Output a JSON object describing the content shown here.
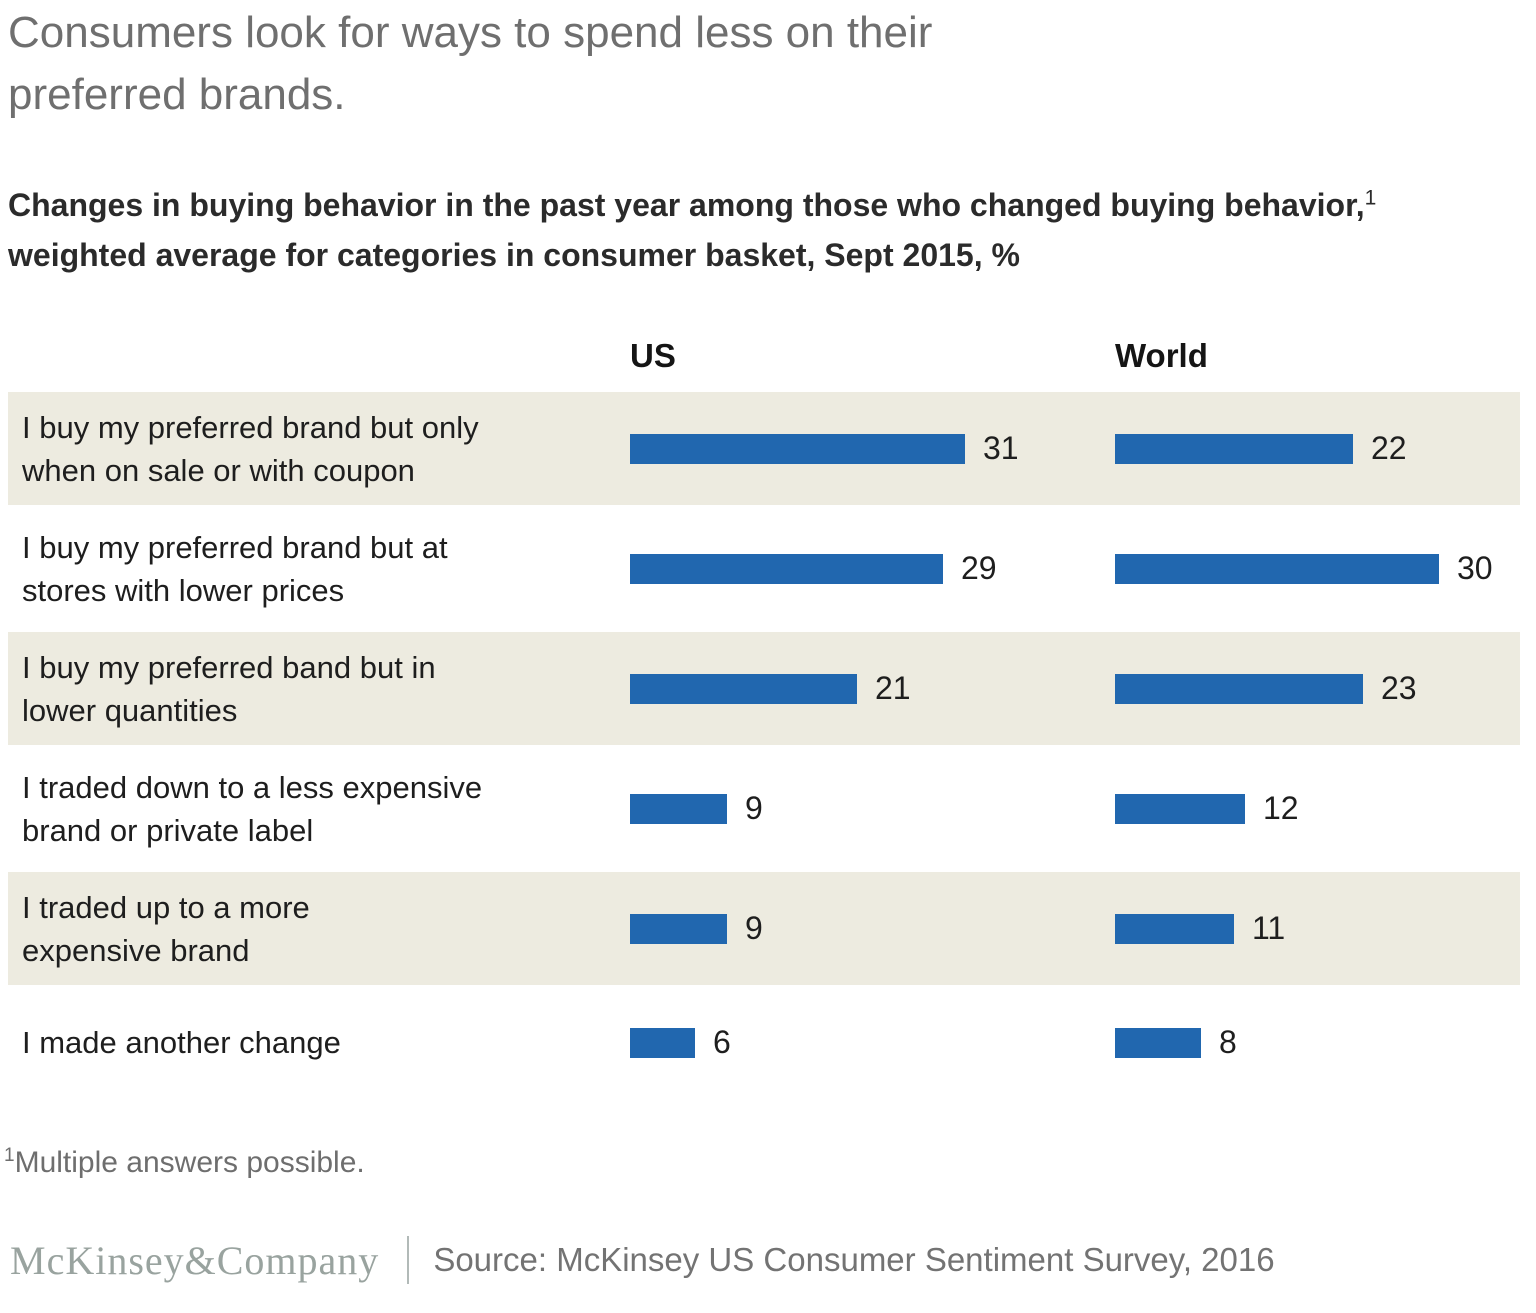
{
  "title": "Consumers look for ways to spend less on their\npreferred brands.",
  "subtitle": {
    "part1": "Changes in buying behavior in the past year among those who changed buying behavior,",
    "superscript": "1",
    "part2": "weighted average for categories in consumer basket, Sept 2015, %"
  },
  "chart_data": {
    "type": "bar",
    "orientation": "horizontal",
    "unit": "%",
    "title": "Changes in buying behavior in the past year among those who changed buying behavior, weighted average for categories in consumer basket, Sept 2015, %",
    "categories": [
      "I buy my preferred brand but only\nwhen on sale or with coupon",
      "I buy my preferred brand but at\nstores with lower prices",
      "I buy my preferred band but in\nlower quantities",
      "I traded down to a less expensive\nbrand or private label",
      "I traded up to a more\nexpensive brand",
      "I made another change"
    ],
    "series": [
      {
        "name": "US",
        "values": [
          31,
          29,
          21,
          9,
          9,
          6
        ]
      },
      {
        "name": "World",
        "values": [
          22,
          30,
          23,
          12,
          11,
          8
        ]
      }
    ],
    "value_labels": true,
    "axis_hidden": true,
    "legend_position": "column-headers"
  },
  "footnote": {
    "superscript": "1",
    "text": "Multiple answers possible."
  },
  "footer": {
    "logo": "McKinsey&Company",
    "source": "Source: McKinsey US Consumer Sentiment Survey, 2016"
  },
  "colors": {
    "bar": "#2167AF",
    "row_stripe": "#EDEBE0",
    "title_gray": "#6F6F6F",
    "text_dark": "#1E1E1E",
    "logo_gray": "#99A39F"
  }
}
